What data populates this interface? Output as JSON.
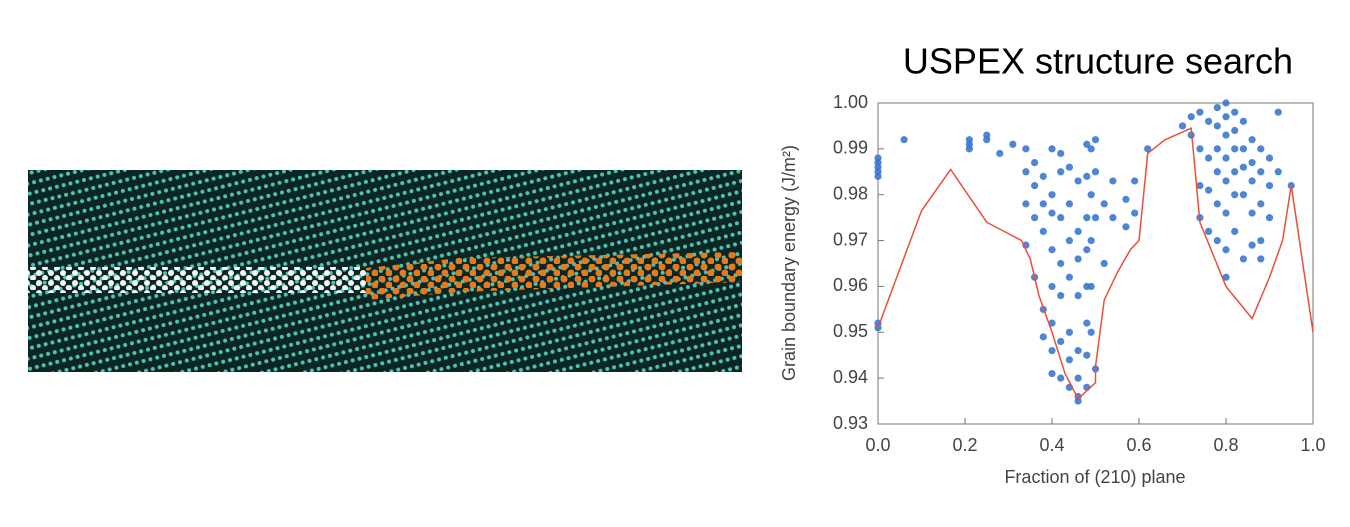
{
  "chart_data": {
    "type": "scatter",
    "title": "USPEX structure search",
    "xlabel": "Fraction of (210) plane",
    "ylabel": "Grain boundary energy (J/m²)",
    "xlim": [
      0,
      1
    ],
    "ylim": [
      0.93,
      1.0
    ],
    "xticks": [
      {
        "value": 0,
        "label": "0.0"
      },
      0.2,
      0.4,
      0.6,
      0.8,
      {
        "value": 1,
        "label": "1.0"
      }
    ],
    "yticks": [
      0.93,
      0.94,
      0.95,
      0.96,
      0.97,
      0.98,
      0.99,
      {
        "value": 1,
        "label": "1.00"
      }
    ],
    "series": [
      {
        "type": "scatter",
        "color": "#3b78d0",
        "x": [
          0,
          0,
          0,
          0,
          0,
          0,
          0,
          0.06,
          0.21,
          0.21,
          0.21,
          0.25,
          0.25,
          0.28,
          0.31,
          0.34,
          0.34,
          0.34,
          0.34,
          0.36,
          0.36,
          0.36,
          0.36,
          0.38,
          0.38,
          0.38,
          0.38,
          0.38,
          0.4,
          0.4,
          0.4,
          0.4,
          0.4,
          0.4,
          0.4,
          0.4,
          0.42,
          0.42,
          0.42,
          0.42,
          0.42,
          0.42,
          0.42,
          0.44,
          0.44,
          0.44,
          0.44,
          0.44,
          0.44,
          0.44,
          0.46,
          0.46,
          0.46,
          0.46,
          0.46,
          0.46,
          0.46,
          0.46,
          0.48,
          0.48,
          0.48,
          0.48,
          0.48,
          0.48,
          0.48,
          0.48,
          0.49,
          0.49,
          0.49,
          0.49,
          0.49,
          0.5,
          0.5,
          0.5,
          0.5,
          0.52,
          0.52,
          0.54,
          0.54,
          0.57,
          0.57,
          0.59,
          0.59,
          0.62,
          0.7,
          0.72,
          0.72,
          0.74,
          0.74,
          0.74,
          0.74,
          0.76,
          0.76,
          0.76,
          0.76,
          0.78,
          0.78,
          0.78,
          0.78,
          0.78,
          0.78,
          0.8,
          0.8,
          0.8,
          0.8,
          0.8,
          0.8,
          0.8,
          0.8,
          0.82,
          0.82,
          0.82,
          0.82,
          0.82,
          0.82,
          0.84,
          0.84,
          0.84,
          0.84,
          0.84,
          0.86,
          0.86,
          0.86,
          0.86,
          0.86,
          0.88,
          0.88,
          0.88,
          0.88,
          0.88,
          0.9,
          0.9,
          0.9,
          0.92,
          0.92,
          0.95
        ],
        "values": [
          0.951,
          0.952,
          0.984,
          0.985,
          0.986,
          0.987,
          0.988,
          0.992,
          0.99,
          0.991,
          0.992,
          0.993,
          0.992,
          0.989,
          0.991,
          0.99,
          0.985,
          0.978,
          0.969,
          0.975,
          0.982,
          0.987,
          0.962,
          0.984,
          0.978,
          0.972,
          0.955,
          0.949,
          0.98,
          0.976,
          0.968,
          0.96,
          0.952,
          0.946,
          0.941,
          0.99,
          0.985,
          0.975,
          0.965,
          0.958,
          0.948,
          0.94,
          0.989,
          0.986,
          0.978,
          0.97,
          0.962,
          0.95,
          0.944,
          0.938,
          0.983,
          0.972,
          0.966,
          0.958,
          0.946,
          0.94,
          0.936,
          0.935,
          0.991,
          0.984,
          0.975,
          0.968,
          0.96,
          0.952,
          0.945,
          0.938,
          0.99,
          0.98,
          0.97,
          0.96,
          0.95,
          0.992,
          0.985,
          0.975,
          0.942,
          0.978,
          0.965,
          0.983,
          0.975,
          0.979,
          0.973,
          0.983,
          0.976,
          0.99,
          0.995,
          0.997,
          0.993,
          0.998,
          0.99,
          0.982,
          0.975,
          0.996,
          0.988,
          0.981,
          0.972,
          0.999,
          0.995,
          0.99,
          0.985,
          0.978,
          0.97,
          1.0,
          0.997,
          0.993,
          0.988,
          0.983,
          0.976,
          0.968,
          0.962,
          0.998,
          0.994,
          0.99,
          0.985,
          0.98,
          0.972,
          0.996,
          0.99,
          0.986,
          0.98,
          0.966,
          0.992,
          0.987,
          0.983,
          0.976,
          0.969,
          0.99,
          0.985,
          0.978,
          0.97,
          0.966,
          0.988,
          0.982,
          0.975,
          0.998,
          0.985,
          0.982
        ]
      },
      {
        "type": "line",
        "color": "#e8503a",
        "x": [
          0,
          0.1,
          0.167,
          0.25,
          0.33,
          0.35,
          0.37,
          0.4,
          0.43,
          0.46,
          0.5,
          0.5,
          0.52,
          0.55,
          0.58,
          0.6,
          0.62,
          0.66,
          0.72,
          0.74,
          0.8,
          0.86,
          0.9,
          0.93,
          0.95,
          1.0
        ],
        "values": [
          0.951,
          0.9765,
          0.9855,
          0.974,
          0.97,
          0.966,
          0.958,
          0.95,
          0.941,
          0.9355,
          0.939,
          0.9425,
          0.957,
          0.963,
          0.968,
          0.97,
          0.989,
          0.992,
          0.9945,
          0.974,
          0.96,
          0.953,
          0.962,
          0.97,
          0.982,
          0.95
        ]
      }
    ]
  }
}
